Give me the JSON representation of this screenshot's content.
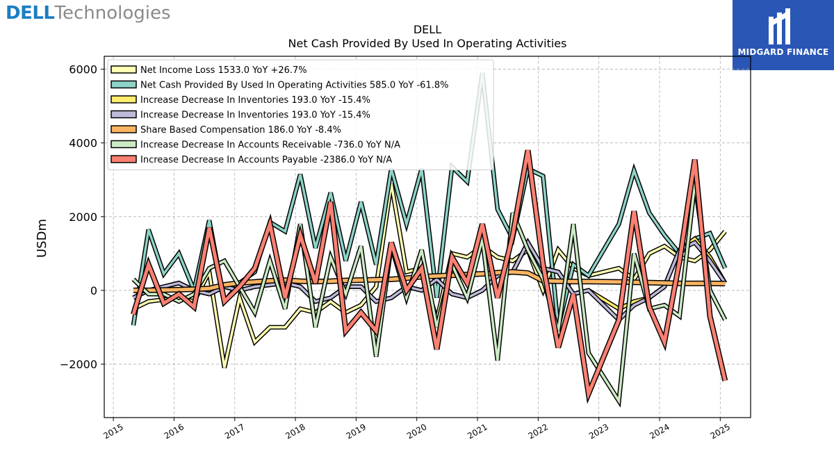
{
  "header": {
    "brand_left_bold": "DELL",
    "brand_left_light": "Technologies",
    "brand_right": "MIDGARD FINANCE"
  },
  "colors": {
    "brand_blue": "#1b7ec2",
    "badge_bg": "#2a56b5"
  },
  "chart_data": {
    "type": "line",
    "title": "DELL",
    "subtitle": "Net Cash Provided By Used In Operating Activities",
    "xlabel": "",
    "ylabel": "USDm",
    "xlim": [
      2014.85,
      2025.5
    ],
    "ylim": [
      -3450,
      6350
    ],
    "grid": true,
    "legend_position": "top-left",
    "x_ticks": [
      {
        "value": 2015,
        "label": "2015"
      },
      {
        "value": 2016,
        "label": "2016"
      },
      {
        "value": 2017,
        "label": "2017"
      },
      {
        "value": 2018,
        "label": "2018"
      },
      {
        "value": 2019,
        "label": "2019"
      },
      {
        "value": 2020,
        "label": "2020"
      },
      {
        "value": 2021,
        "label": "2021"
      },
      {
        "value": 2022,
        "label": "2022"
      },
      {
        "value": 2023,
        "label": "2023"
      },
      {
        "value": 2024,
        "label": "2024"
      },
      {
        "value": 2025,
        "label": "2025"
      }
    ],
    "y_ticks": [
      {
        "value": -2000,
        "label": "−2000"
      },
      {
        "value": 0,
        "label": "0"
      },
      {
        "value": 2000,
        "label": "2000"
      },
      {
        "value": 4000,
        "label": "4000"
      },
      {
        "value": 6000,
        "label": "6000"
      }
    ],
    "x": [
      2015.33,
      2015.58,
      2015.83,
      2016.08,
      2016.33,
      2016.58,
      2016.83,
      2017.08,
      2017.33,
      2017.58,
      2017.83,
      2018.08,
      2018.33,
      2018.58,
      2018.83,
      2019.08,
      2019.33,
      2019.58,
      2019.83,
      2020.08,
      2020.33,
      2020.58,
      2020.83,
      2021.08,
      2021.33,
      2021.58,
      2021.83,
      2022.08,
      2022.33,
      2022.58,
      2022.83,
      2023.33,
      2023.58,
      2023.83,
      2024.08,
      2024.33,
      2024.58,
      2024.83,
      2025.08
    ],
    "series": [
      {
        "name": "Net Income Loss",
        "legend": "Net Income Loss  1533.0 YoY +26.7%",
        "color": "#ffffb3",
        "width": 3.5,
        "values": [
          -500,
          -300,
          -250,
          -200,
          -300,
          500,
          -2100,
          -200,
          -1400,
          -1000,
          -1000,
          -500,
          -600,
          -300,
          -600,
          -400,
          100,
          2900,
          500,
          600,
          -800,
          1000,
          900,
          1200,
          900,
          800,
          1100,
          0,
          1100,
          600,
          400,
          600,
          300,
          1000,
          1200,
          900,
          800,
          1100,
          1600
        ]
      },
      {
        "name": "Net Cash Provided By Used In Operating Activities",
        "legend": "Net Cash Provided By Used In Operating Activities  585.0 YoY -61.8%",
        "color": "#8dd3c7",
        "width": 3.5,
        "values": [
          -950,
          1650,
          450,
          1000,
          0,
          1900,
          -300,
          200,
          500,
          1850,
          1600,
          3150,
          1150,
          2650,
          800,
          2400,
          700,
          3300,
          1800,
          3300,
          -200,
          3350,
          2950,
          5900,
          2200,
          1400,
          3300,
          3100,
          -1000,
          700,
          400,
          1800,
          3250,
          2100,
          1500,
          1000,
          1400,
          1550,
          600
        ]
      },
      {
        "name": "Increase Decrease In Inventories",
        "legend": "Increase Decrease In Inventories  193.0 YoY -15.4%",
        "color": "#ffed6f",
        "width": 3.5,
        "values": [
          -200,
          0,
          100,
          200,
          0,
          -100,
          100,
          0,
          100,
          150,
          200,
          100,
          -300,
          -200,
          100,
          100,
          -300,
          -200,
          100,
          0,
          300,
          -100,
          -200,
          0,
          400,
          500,
          1300,
          600,
          500,
          -100,
          0,
          -500,
          -300,
          -200,
          100,
          1100,
          1400,
          900,
          200
        ]
      },
      {
        "name": "Increase Decrease In Inventories",
        "legend": "Increase Decrease In Inventories  193.0 YoY -15.4%",
        "color": "#bebada",
        "width": 3.5,
        "values": [
          -200,
          0,
          100,
          200,
          0,
          -100,
          100,
          0,
          100,
          150,
          200,
          100,
          -300,
          -200,
          100,
          100,
          -300,
          -200,
          100,
          0,
          300,
          -100,
          -200,
          0,
          400,
          500,
          1300,
          600,
          500,
          -100,
          0,
          -800,
          -400,
          -200,
          100,
          1100,
          1300,
          800,
          200
        ]
      },
      {
        "name": "Share Based Compensation",
        "legend": "Share Based Compensation  186.0 YoY -8.4%",
        "color": "#fdb462",
        "width": 5,
        "values": [
          0,
          0,
          10,
          20,
          30,
          50,
          150,
          200,
          230,
          260,
          280,
          250,
          240,
          250,
          270,
          280,
          290,
          300,
          330,
          370,
          390,
          410,
          430,
          450,
          480,
          500,
          470,
          260,
          250,
          240,
          240,
          230,
          220,
          210,
          200,
          190,
          190,
          190,
          186
        ]
      },
      {
        "name": "Increase Decrease In Accounts Receivable",
        "legend": "Increase Decrease In Accounts Receivable  -736.0 YoY N/A",
        "color": "#ccebc5",
        "width": 3.5,
        "values": [
          300,
          -100,
          -100,
          -300,
          -100,
          600,
          800,
          100,
          -600,
          800,
          -500,
          1800,
          -1000,
          900,
          -100,
          1200,
          -1800,
          1200,
          -200,
          1100,
          -1000,
          700,
          -200,
          1400,
          -1900,
          2100,
          1100,
          300,
          -1100,
          1800,
          -1700,
          -3000,
          1000,
          -500,
          -400,
          -700,
          2900,
          0,
          -800
        ]
      },
      {
        "name": "Increase Decrease In Accounts Payable",
        "legend": "Increase Decrease In Accounts Payable  -2386.0 YoY N/A",
        "color": "#fb8072",
        "width": 5,
        "values": [
          -650,
          700,
          -350,
          -100,
          -450,
          1700,
          -300,
          100,
          600,
          1800,
          -200,
          1500,
          200,
          2400,
          -1100,
          -600,
          -1100,
          1300,
          0,
          600,
          -1600,
          900,
          200,
          1800,
          -200,
          1500,
          3800,
          700,
          -1550,
          -100,
          -2800,
          -800,
          2150,
          -450,
          -1400,
          800,
          3550,
          -700,
          -2450
        ]
      }
    ]
  }
}
